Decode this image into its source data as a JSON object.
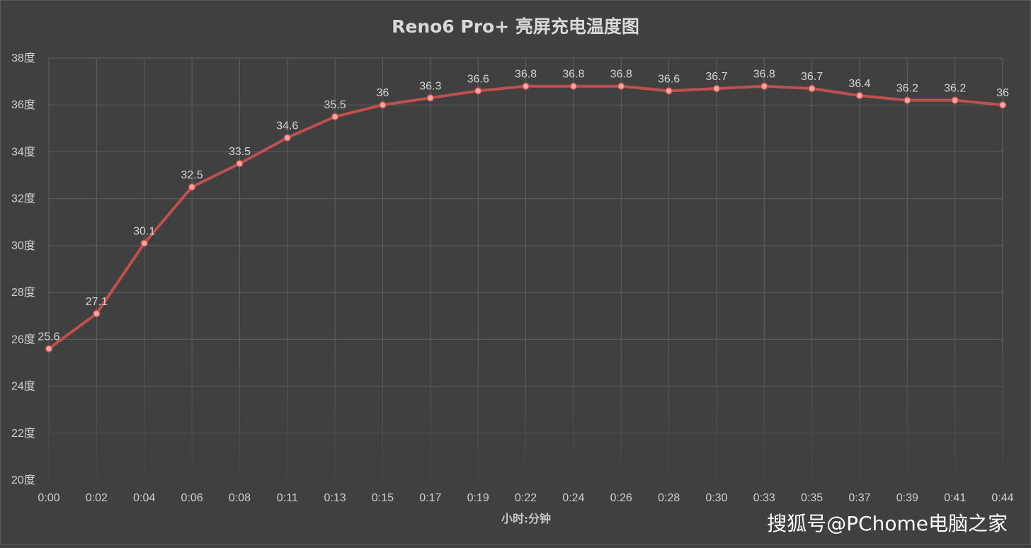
{
  "chart_data": {
    "type": "line",
    "title": "Reno6 Pro+ 亮屏充电温度图",
    "xlabel": "小时:分钟",
    "ylabel": "",
    "categories": [
      "0:00",
      "0:02",
      "0:04",
      "0:06",
      "0:08",
      "0:11",
      "0:13",
      "0:15",
      "0:17",
      "0:19",
      "0:22",
      "0:24",
      "0:26",
      "0:28",
      "0:30",
      "0:33",
      "0:35",
      "0:37",
      "0:39",
      "0:41",
      "0:44"
    ],
    "series": [
      {
        "values": [
          25.6,
          27.1,
          30.1,
          32.5,
          33.5,
          34.6,
          35.5,
          36,
          36.3,
          36.6,
          36.8,
          36.8,
          36.8,
          36.6,
          36.7,
          36.8,
          36.7,
          36.4,
          36.2,
          36.2,
          36
        ],
        "color": "#c0504d"
      }
    ],
    "data_labels": [
      "25.6",
      "27.1",
      "30.1",
      "32.5",
      "33.5",
      "34.6",
      "35.5",
      "36",
      "36.3",
      "36.6",
      "36.8",
      "36.8",
      "36.8",
      "36.6",
      "36.7",
      "36.8",
      "36.7",
      "36.4",
      "36.2",
      "36.2",
      "36"
    ],
    "ylim": [
      20,
      38
    ],
    "y_ticks": [
      20,
      22,
      24,
      26,
      28,
      30,
      32,
      34,
      36,
      38
    ],
    "y_tick_labels": [
      "20度",
      "22度",
      "24度",
      "26度",
      "28度",
      "30度",
      "32度",
      "34度",
      "36度",
      "38度"
    ],
    "grid": true,
    "legend": "none"
  },
  "watermark": "搜狐号@PChome电脑之家",
  "colors": {
    "background": "#404040",
    "line": "#c0504d",
    "marker": "#f2a7a5",
    "grid": "#5f5f5f",
    "text": "#d9d9d9"
  }
}
